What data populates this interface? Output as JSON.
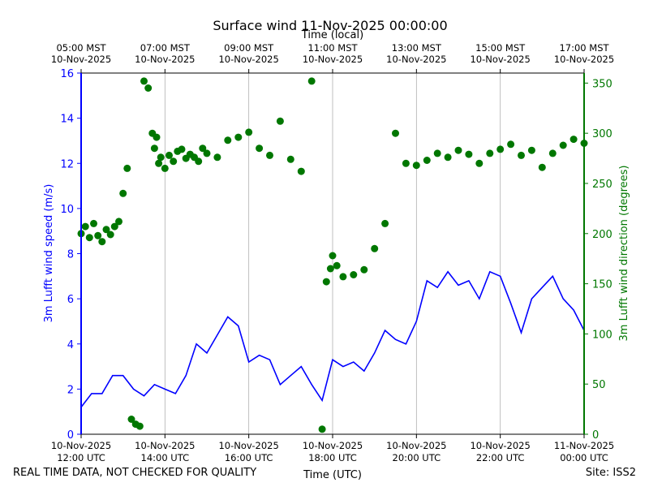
{
  "chart_data": {
    "type": "line",
    "title": "Surface wind 11-Nov-2025 00:00:00",
    "top_axis_title": "Time (local)",
    "xlabel": "Time (UTC)",
    "ylabel_left": "3m Lufft wind speed (m/s)",
    "ylabel_right": "3m Lufft wind direction (degrees)",
    "footer_left": "REAL TIME DATA, NOT CHECKED FOR QUALITY",
    "footer_right": "Site: ISS2",
    "xlim_hours_utc": [
      12,
      24
    ],
    "ylim_left": [
      0,
      16
    ],
    "ylim_right": [
      0,
      360
    ],
    "left_ticks": [
      "0",
      "2",
      "4",
      "6",
      "8",
      "10",
      "12",
      "14",
      "16"
    ],
    "right_ticks": [
      "0",
      "50",
      "100",
      "150",
      "200",
      "250",
      "300",
      "350"
    ],
    "bottom_ticks": [
      {
        "hour": 12,
        "date": "10-Nov-2025",
        "time": "12:00 UTC"
      },
      {
        "hour": 14,
        "date": "10-Nov-2025",
        "time": "14:00 UTC"
      },
      {
        "hour": 16,
        "date": "10-Nov-2025",
        "time": "16:00 UTC"
      },
      {
        "hour": 18,
        "date": "10-Nov-2025",
        "time": "18:00 UTC"
      },
      {
        "hour": 20,
        "date": "10-Nov-2025",
        "time": "20:00 UTC"
      },
      {
        "hour": 22,
        "date": "10-Nov-2025",
        "time": "22:00 UTC"
      },
      {
        "hour": 24,
        "date": "11-Nov-2025",
        "time": "00:00 UTC"
      }
    ],
    "top_ticks": [
      {
        "hour": 12,
        "time": "05:00 MST",
        "date": "10-Nov-2025"
      },
      {
        "hour": 14,
        "time": "07:00 MST",
        "date": "10-Nov-2025"
      },
      {
        "hour": 16,
        "time": "09:00 MST",
        "date": "10-Nov-2025"
      },
      {
        "hour": 18,
        "time": "11:00 MST",
        "date": "10-Nov-2025"
      },
      {
        "hour": 20,
        "time": "13:00 MST",
        "date": "10-Nov-2025"
      },
      {
        "hour": 22,
        "time": "15:00 MST",
        "date": "10-Nov-2025"
      },
      {
        "hour": 24,
        "time": "17:00 MST",
        "date": "10-Nov-2025"
      }
    ],
    "series": [
      {
        "name": "3m Lufft wind speed",
        "axis": "left",
        "style": "line",
        "color": "#0000ff",
        "x_hours": [
          12.0,
          12.25,
          12.5,
          12.75,
          13.0,
          13.25,
          13.5,
          13.75,
          14.0,
          14.25,
          14.5,
          14.75,
          15.0,
          15.25,
          15.5,
          15.75,
          16.0,
          16.25,
          16.5,
          16.75,
          17.0,
          17.25,
          17.5,
          17.75,
          18.0,
          18.25,
          18.5,
          18.75,
          19.0,
          19.25,
          19.5,
          19.75,
          20.0,
          20.25,
          20.5,
          20.75,
          21.0,
          21.25,
          21.5,
          21.75,
          22.0,
          22.25,
          22.5,
          22.75,
          23.0,
          23.25,
          23.5,
          23.75,
          24.0
        ],
        "values": [
          1.2,
          1.8,
          1.8,
          2.6,
          2.6,
          2.0,
          1.7,
          2.2,
          2.0,
          1.8,
          2.6,
          4.0,
          3.6,
          4.4,
          5.2,
          4.8,
          3.2,
          3.5,
          3.3,
          2.2,
          2.6,
          3.0,
          2.2,
          1.5,
          3.3,
          3.0,
          3.2,
          2.8,
          3.6,
          4.6,
          4.2,
          4.0,
          5.0,
          6.8,
          6.5,
          7.2,
          6.6,
          6.8,
          6.0,
          7.2,
          7.0,
          5.8,
          4.5,
          6.0,
          6.5,
          7.0,
          6.0,
          5.5,
          4.6
        ]
      },
      {
        "name": "3m Lufft wind direction",
        "axis": "right",
        "style": "markers",
        "color": "#007700",
        "x_hours": [
          12.0,
          12.1,
          12.2,
          12.3,
          12.4,
          12.5,
          12.6,
          12.7,
          12.8,
          12.9,
          13.0,
          13.1,
          13.2,
          13.3,
          13.4,
          13.5,
          13.6,
          13.7,
          13.75,
          13.8,
          13.85,
          13.9,
          14.0,
          14.1,
          14.2,
          14.3,
          14.4,
          14.5,
          14.6,
          14.7,
          14.8,
          14.9,
          15.0,
          15.25,
          15.5,
          15.75,
          16.0,
          16.25,
          16.5,
          16.75,
          17.0,
          17.25,
          17.5,
          17.75,
          17.85,
          17.95,
          18.0,
          18.1,
          18.25,
          18.5,
          18.75,
          19.0,
          19.25,
          19.5,
          19.75,
          20.0,
          20.25,
          20.5,
          20.75,
          21.0,
          21.25,
          21.5,
          21.75,
          22.0,
          22.25,
          22.5,
          22.75,
          23.0,
          23.25,
          23.5,
          23.75,
          24.0
        ],
        "values": [
          200,
          207,
          196,
          210,
          198,
          192,
          204,
          199,
          207,
          212,
          240,
          265,
          15,
          10,
          8,
          352,
          345,
          300,
          285,
          296,
          270,
          276,
          265,
          278,
          272,
          282,
          284,
          275,
          279,
          276,
          272,
          285,
          280,
          276,
          293,
          296,
          301,
          285,
          278,
          312,
          274,
          262,
          352,
          5,
          152,
          165,
          178,
          168,
          157,
          159,
          164,
          185,
          210,
          300,
          270,
          268,
          273,
          280,
          276,
          283,
          279,
          270,
          280,
          284,
          289,
          278,
          283,
          266,
          280,
          288,
          294,
          290
        ]
      }
    ]
  }
}
